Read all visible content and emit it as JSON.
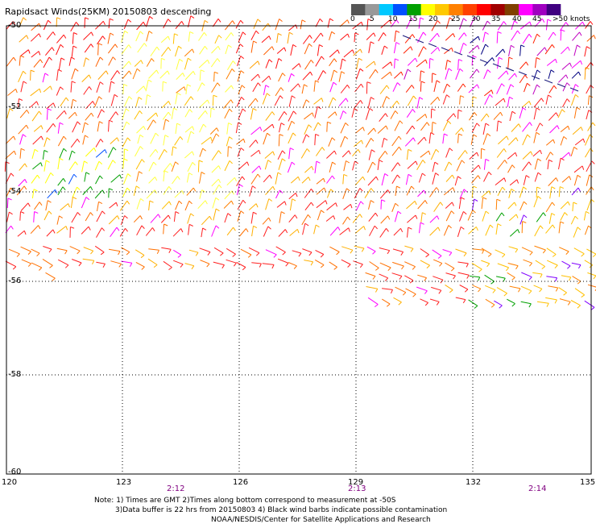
{
  "title": "Rapidsact Winds(25KM) 20150803 descending",
  "legend": {
    "colors": [
      "#555555",
      "#999999",
      "#00c8ff",
      "#0050ff",
      "#00a000",
      "#ffff00",
      "#ffc800",
      "#ff8000",
      "#ff4000",
      "#ff0000",
      "#a00000",
      "#804000",
      "#ff00ff",
      "#a000c0",
      "#400080"
    ],
    "labels": [
      "0",
      "5",
      "10",
      "15",
      "20",
      "25",
      "30",
      "35",
      "40",
      "45",
      ">50 knots"
    ]
  },
  "axes": {
    "lat_labels": [
      "-50",
      "-52",
      "-54",
      "-56",
      "-58",
      "-60"
    ],
    "lon_labels": [
      "120",
      "123",
      "126",
      "129",
      "132",
      "135"
    ]
  },
  "times": [
    "2:12",
    "2:13",
    "2:14"
  ],
  "notes": {
    "line1": "Note: 1) Times are GMT 2)Times along bottom correspond to measurement at -50S",
    "line2": "3)Data buffer is 22 hrs from 20150803 4) Black wind barbs indicate possible contamination",
    "line3": "NOAA/NESDIS/Center for Satellite Applications and Research"
  }
}
